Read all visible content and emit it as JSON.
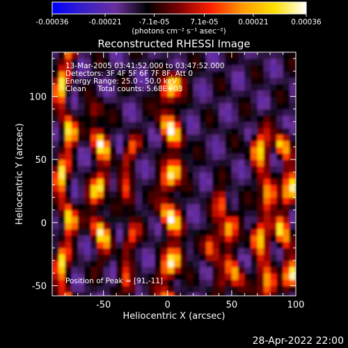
{
  "chart_data": {
    "type": "heatmap",
    "title": "Reconstructed RHESSI Image",
    "xlabel": "Heliocentric X (arcsec)",
    "ylabel": "Heliocentric Y (arcsec)",
    "xlim": [
      -90,
      100
    ],
    "ylim": [
      -58,
      135
    ],
    "x_ticks": [
      -50,
      0,
      50,
      100
    ],
    "y_ticks": [
      -50,
      0,
      50,
      100
    ],
    "colorbar": {
      "label": "(photons cm⁻² s⁻¹ asec⁻²)",
      "range": [
        -0.00036,
        0.00036
      ],
      "tick_labels": [
        "-0.00036",
        "-0.00021",
        "-7.1e-05",
        "7.1e-05",
        "0.00021",
        "0.00036"
      ],
      "tick_values": [
        -0.00036,
        -0.00021,
        -7.1e-05,
        7.1e-05,
        0.00021,
        0.00036
      ],
      "colors": [
        "#0000ff",
        "#3a20c8",
        "#6a2f9c",
        "#000000",
        "#800000",
        "#ff2000",
        "#ff9a00",
        "#ffe000",
        "#ffffff"
      ]
    },
    "annotations": [
      "13-Mar-2005 03:41:52.000 to 03:47:52.000",
      "Detectors: 3F 4F 5F 6F 7F 8F, Att 0",
      "Energy Range: 25.0 - 50.0 keV",
      "Clean     Total counts: 5.68E+03"
    ],
    "peak_label": "Position of Peak = [91,-11]",
    "peak": [
      91,
      -11
    ],
    "grid": false
  },
  "footer": {
    "timestamp": "28-Apr-2022 22:00"
  }
}
